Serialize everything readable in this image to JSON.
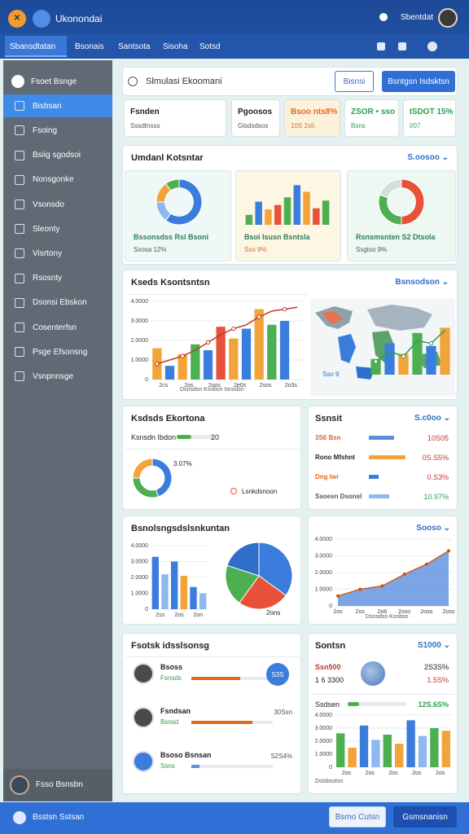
{
  "header": {
    "title": "Ukonondai",
    "user": "Sbentdat"
  },
  "tabs": [
    "Sbansdtatan",
    "Bsonais",
    "Santsota",
    "Sisoha",
    "Sotsd"
  ],
  "sidebar": {
    "items": [
      "Fsoet Bsnge",
      "Bisbsan",
      "Fsoing",
      "Bsiig sgodsoi",
      "Nonsgonke",
      "Vsonsdo",
      "Sleonty",
      "Visrtony",
      "Rsosnty",
      "Dsonsi Ebskon",
      "Cosenterfsn",
      "Psge Efsonsng",
      "Vsnpnnsge"
    ],
    "user": "Fsso Bsnsbn"
  },
  "search": {
    "placeholder": "Slmulasi Ekoomani",
    "buttons": [
      "Bisnsi",
      "Bsntgsn Isdsktsn"
    ]
  },
  "stats": [
    {
      "label": "Fsnden",
      "value": "Sssdtnsss"
    },
    {
      "label": "Pgoosos",
      "value": "Glsdsdsos"
    },
    {
      "label": "Bsoo nts8%",
      "value": "10S 2s5"
    },
    {
      "label": "ZSOR • sso",
      "value": "Bsns"
    },
    {
      "label": "ISDOT 15%",
      "value": "I/07"
    }
  ],
  "overview": {
    "title": "Umdanl Kotsntar",
    "filter": "S.oosoo ⌄",
    "cards": [
      {
        "caption": "Bssonsdss Rsl Bsoni",
        "note": "Ssosa 12%",
        "chart": {
          "type": "donut",
          "values": [
            60,
            15,
            15,
            10
          ],
          "colors": [
            "#3b7ddd",
            "#8fb8ef",
            "#f2a33a",
            "#4caf50"
          ]
        }
      },
      {
        "caption": "Bsoi Isusn Bsntsla",
        "note": "Sso 9%",
        "chart": {
          "type": "bar",
          "values": [
            18,
            42,
            28,
            36,
            50,
            72,
            60,
            30,
            44
          ],
          "colors": [
            "#4caf50",
            "#3b7ddd",
            "#f2a33a",
            "#e8523a"
          ],
          "ylim": [
            0,
            80
          ]
        }
      },
      {
        "caption": "Rsnsmsnten S2 Dtsola",
        "note": "Ssgtso 9%",
        "chart": {
          "type": "donut",
          "values": [
            50,
            30,
            20
          ],
          "colors": [
            "#e8523a",
            "#4caf50",
            "#d5dde0"
          ]
        }
      }
    ]
  },
  "trend": {
    "title": "Kseds Ksontsntsn",
    "filter": "Bsnsodson ⌄",
    "chart": {
      "type": "bar",
      "categories": [
        "2cs",
        null,
        "2os",
        null,
        "2oos",
        null,
        "2e0s",
        null,
        "2sos",
        null,
        "2o3s",
        null
      ],
      "values": [
        1.6,
        0.7,
        1.3,
        1.8,
        1.5,
        2.7,
        2.1,
        2.6,
        3.6,
        2.8,
        3.0,
        0
      ],
      "colors": [
        "#f2a33a",
        "#3b7ddd",
        "#f2a33a",
        "#4caf50",
        "#3b7ddd",
        "#e8523a"
      ],
      "line": [
        0.8,
        1.0,
        1.2,
        1.5,
        1.9,
        2.3,
        2.6,
        2.8,
        3.2,
        3.5,
        3.6,
        3.7
      ],
      "line_color": "#c0392b",
      "ylim": [
        0,
        4
      ],
      "yticks": [
        0,
        {
          "value": 1,
          "label": "1.0000"
        },
        {
          "value": 2,
          "label": "2.0000"
        },
        {
          "value": 3,
          "label": "3.0000"
        },
        {
          "value": 4,
          "label": "4.0000"
        }
      ],
      "caption": "Dsnsdsn Ksnbsn Isnsdsn"
    },
    "map_chart": {
      "type": "bar",
      "values": [
        1.2,
        2.4,
        1.6,
        3.2,
        2.2,
        3.6
      ],
      "colors": [
        "#4caf50",
        "#3b7ddd",
        "#f2a33a"
      ],
      "line": [
        1.0,
        1.8,
        1.4,
        2.6,
        2.4,
        3.4
      ],
      "line_color": "#2e9e4f",
      "ylim": [
        0,
        4
      ]
    },
    "map_label": "Sso 9"
  },
  "economy": {
    "title": "Ksdsds Ekortona",
    "progress": {
      "label": "Ksnsdn Ibdon",
      "value": 20
    },
    "chart": {
      "type": "donut",
      "values": [
        45,
        30,
        25
      ],
      "colors": [
        "#3b7ddd",
        "#4caf50",
        "#f2a33a"
      ]
    },
    "chart_label": "3.07%",
    "legend": "Lsnkdsnoon"
  },
  "sector": {
    "title": "Ssnsit",
    "filter": "S.c0oo ⌄",
    "rows": [
      {
        "label": "3S6 Bsn",
        "bar": 31,
        "value": "10S05"
      },
      {
        "label": "Rono Mfshnt",
        "bar": 45,
        "value": "0S.S5%"
      },
      {
        "label": "Dng lwr",
        "bar": 12,
        "value": "0.S3%"
      },
      {
        "label": "Ssoesn Dsonsl",
        "bar": 25,
        "value": "10.97%"
      }
    ]
  },
  "balance": {
    "title": "Bsnolsngsdslsnkuntan",
    "chart": {
      "type": "bar",
      "categories": [
        "2ss",
        null,
        "2os",
        null,
        "2on",
        null
      ],
      "values": [
        3.3,
        2.2,
        3.0,
        2.1,
        1.4,
        1.0
      ],
      "colors": [
        "#3b7ddd",
        "#8fb8ef",
        "#3b7ddd",
        "#f2a33a"
      ],
      "ylim": [
        0,
        4
      ],
      "yticks": [
        0,
        {
          "value": 1,
          "label": "1.0000"
        },
        {
          "value": 2,
          "label": "2.0000"
        },
        {
          "value": 3,
          "label": "3.0000"
        },
        {
          "value": 4,
          "label": "4.0000"
        }
      ]
    },
    "pie": {
      "type": "pie",
      "values": [
        35,
        25,
        20,
        20
      ],
      "colors": [
        "#3b7ddd",
        "#e8523a",
        "#4caf50",
        "#2f6fc9"
      ]
    },
    "pie_label": "2ons"
  },
  "growth": {
    "filter": "Sooso ⌄",
    "chart": {
      "type": "area",
      "categories": [
        "2os",
        "2os",
        "2o6",
        "2oso",
        "2oso",
        "2oss"
      ],
      "values": [
        0.6,
        1.0,
        1.2,
        1.9,
        2.5,
        3.3
      ],
      "color": "#5b8fe0",
      "line_color": "#d35400",
      "ylim": [
        0,
        4
      ],
      "yticks": [
        0,
        {
          "value": 1,
          "label": "1.0000"
        },
        {
          "value": 2,
          "label": "2.0000"
        },
        {
          "value": 3,
          "label": "3.0000"
        },
        {
          "value": 4,
          "label": "4.0000"
        }
      ],
      "caption": "Dsnsdsn Ksnbsn"
    }
  },
  "actors": {
    "title": "Fsotsk idsslsonsg",
    "rows": [
      {
        "name": "Bsoss",
        "role": "Fsnsds",
        "progress": 60,
        "badge": "S3S"
      },
      {
        "name": "Fsndsan",
        "role": "Bsnsd",
        "progress": 75,
        "stat": "30Ssn"
      },
      {
        "name": "Bsoso Bsnsan",
        "role": "Ssns",
        "progress": 10,
        "stat": "S2S4%"
      }
    ]
  },
  "summary": {
    "title": "Sontsn",
    "filter": "S1000 ⌄",
    "rows": [
      {
        "label": "Ssn500",
        "value": "2S3S%"
      },
      {
        "label": "1 6 3300",
        "value": "1.5S%"
      }
    ],
    "progress_label": "Ssdsen",
    "progress": 20,
    "progress_value": "12S.6S%",
    "chart": {
      "type": "bar",
      "categories": [
        "2os",
        null,
        "2os",
        null,
        "2os",
        null,
        "2os",
        null,
        "2os",
        null
      ],
      "values": [
        2.6,
        1.5,
        3.2,
        2.1,
        2.5,
        1.8,
        3.6,
        2.4,
        3.0,
        2.8
      ],
      "colors": [
        "#4caf50",
        "#f2a33a",
        "#3b7ddd",
        "#8fb8ef"
      ],
      "ylim": [
        0,
        4
      ],
      "yticks": [
        0,
        {
          "value": 1,
          "label": "1.0000"
        },
        {
          "value": 2,
          "label": "2.0000"
        },
        {
          "value": 3,
          "label": "3.0000"
        },
        {
          "value": 4,
          "label": "4.0000"
        }
      ],
      "caption": "Dstsbsstsn"
    }
  },
  "footer": {
    "title": "Bsstsn Sstsan",
    "buttons": [
      "Bsmo Cutsn",
      "Gsmsnanisn"
    ]
  }
}
